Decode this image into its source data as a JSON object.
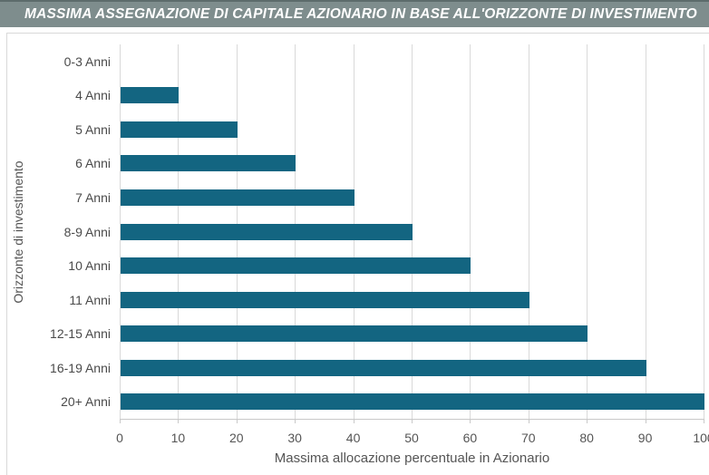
{
  "header": {
    "title": "MASSIMA ASSEGNAZIONE DI CAPITALE AZIONARIO IN BASE ALL'ORIZZONTE DI INVESTIMENTO",
    "bg_color": "#7e8d8d",
    "top_border_color": "#5d6c6c",
    "text_color": "#ffffff"
  },
  "chart_data": {
    "type": "bar",
    "orientation": "horizontal",
    "title": "MASSIMA ASSEGNAZIONE DI CAPITALE AZIONARIO IN BASE ALL'ORIZZONTE DI INVESTIMENTO",
    "categories": [
      "0-3 Anni",
      "4 Anni",
      "5 Anni",
      "6 Anni",
      "7 Anni",
      "8-9 Anni",
      "10 Anni",
      "11 Anni",
      "12-15 Anni",
      "16-19 Anni",
      "20+ Anni"
    ],
    "values": [
      0,
      10,
      20,
      30,
      40,
      50,
      60,
      70,
      80,
      90,
      100
    ],
    "xlabel": "Massima allocazione percentuale in Azionario",
    "ylabel": "Orizzonte di investimento",
    "xlim": [
      0,
      100
    ],
    "xticks": [
      0,
      10,
      20,
      30,
      40,
      50,
      60,
      70,
      80,
      90,
      100
    ],
    "grid": true,
    "legend": false,
    "bar_color": "#136581",
    "grid_color": "#d9d9d9",
    "axis_text_color": "#555555"
  }
}
